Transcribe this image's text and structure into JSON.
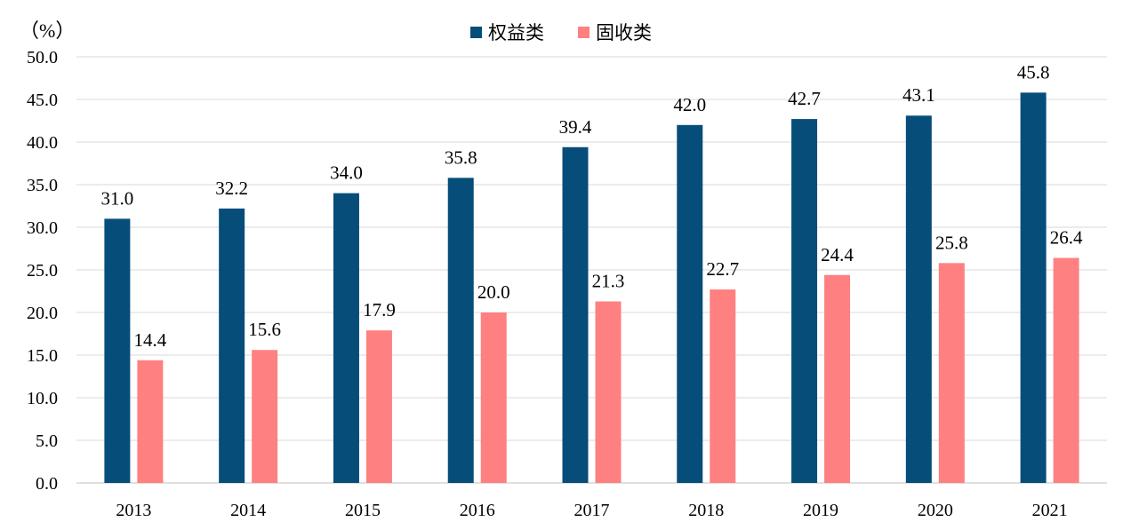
{
  "chart_data": {
    "type": "bar",
    "title": "",
    "unit_label": "（%）",
    "xlabel": "",
    "ylabel": "",
    "categories": [
      "2013",
      "2014",
      "2015",
      "2016",
      "2017",
      "2018",
      "2019",
      "2020",
      "2021"
    ],
    "series": [
      {
        "name": "权益类",
        "color": "#064d7a",
        "values": [
          31.0,
          32.2,
          34.0,
          35.8,
          39.4,
          42.0,
          42.7,
          43.1,
          45.8
        ]
      },
      {
        "name": "固收类",
        "color": "#ff8080",
        "values": [
          14.4,
          15.6,
          17.9,
          20.0,
          21.3,
          22.7,
          24.4,
          25.8,
          26.4
        ]
      }
    ],
    "ylim": [
      0,
      50
    ],
    "yticks": [
      "0.0",
      "5.0",
      "10.0",
      "15.0",
      "20.0",
      "25.0",
      "30.0",
      "35.0",
      "40.0",
      "45.0",
      "50.0"
    ],
    "grid": true,
    "legend_position": "top-center",
    "data_labels": true
  }
}
